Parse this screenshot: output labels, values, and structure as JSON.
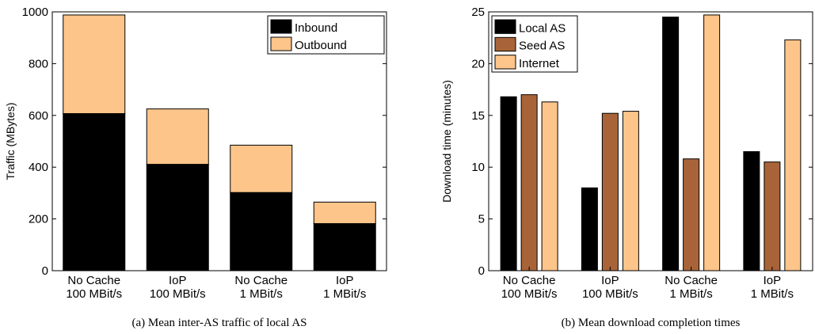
{
  "chart_data": [
    {
      "type": "bar",
      "stacked": true,
      "caption": "(a) Mean inter-AS traffic of local AS",
      "ylabel": "Traffic (MBytes)",
      "xlabel": "",
      "ylim": [
        0,
        1000
      ],
      "yticks": [
        0,
        200,
        400,
        600,
        800,
        1000
      ],
      "grid": false,
      "legend_position": "top-right",
      "categories": [
        [
          "No Cache",
          "100 MBit/s"
        ],
        [
          "IoP",
          "100 MBit/s"
        ],
        [
          "No Cache",
          "1 MBit/s"
        ],
        [
          "IoP",
          "1 MBit/s"
        ]
      ],
      "series": [
        {
          "name": "Inbound",
          "color": "#000000",
          "values": [
            607,
            411,
            302,
            182
          ]
        },
        {
          "name": "Outbound",
          "color": "#fdc58a",
          "values": [
            381,
            214,
            183,
            83
          ]
        }
      ]
    },
    {
      "type": "bar",
      "stacked": false,
      "caption": "(b) Mean download completion times",
      "ylabel": "Download time (minutes)",
      "xlabel": "",
      "ylim": [
        0,
        25
      ],
      "yticks": [
        0,
        5,
        10,
        15,
        20,
        25
      ],
      "grid": false,
      "legend_position": "top-left",
      "categories": [
        [
          "No Cache",
          "100 MBit/s"
        ],
        [
          "IoP",
          "100 MBit/s"
        ],
        [
          "No Cache",
          "1 MBit/s"
        ],
        [
          "IoP",
          "1 MBit/s"
        ]
      ],
      "series": [
        {
          "name": "Local AS",
          "color": "#000000",
          "values": [
            16.8,
            8.0,
            24.5,
            11.5
          ]
        },
        {
          "name": "Seed AS",
          "color": "#a86438",
          "values": [
            17.0,
            15.2,
            10.8,
            10.5
          ]
        },
        {
          "name": "Internet",
          "color": "#fdc58a",
          "values": [
            16.3,
            15.4,
            24.7,
            22.3
          ]
        }
      ]
    }
  ]
}
